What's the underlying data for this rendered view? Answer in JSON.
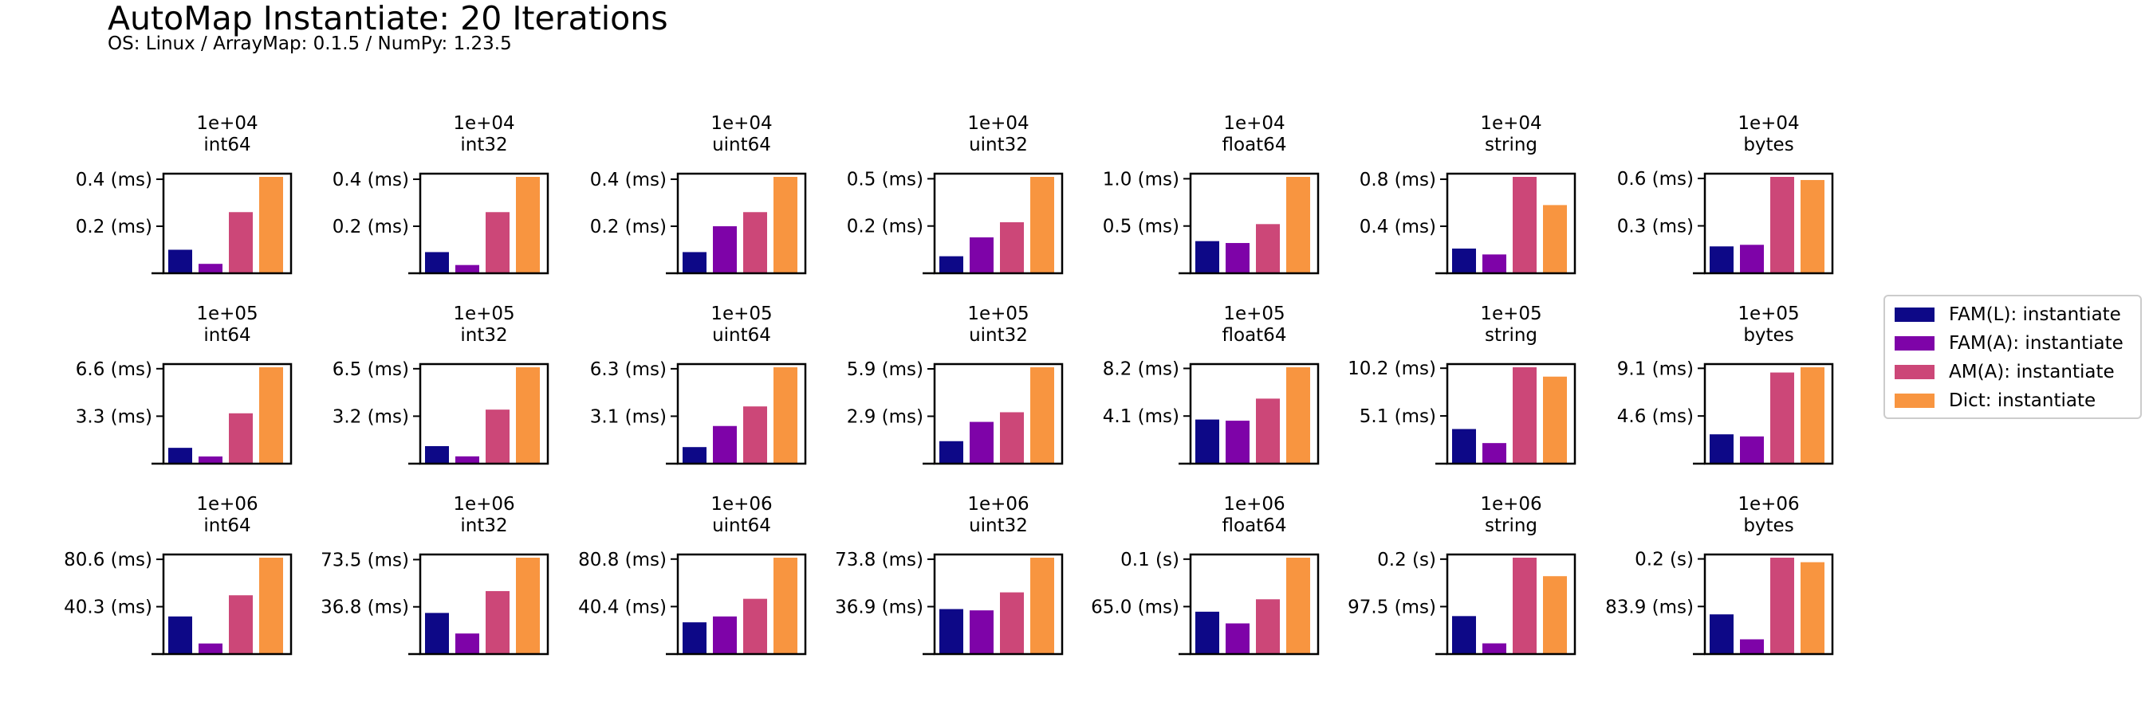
{
  "title": "AutoMap Instantiate: 20 Iterations",
  "subtitle": "OS: Linux / ArrayMap: 0.1.5 / NumPy: 1.23.5",
  "colors": {
    "FAM(L)": "#0d0887",
    "FAM(A)": "#7e03a8",
    "AM(A)": "#cc4778",
    "Dict": "#f89540"
  },
  "legend": [
    {
      "key": "FAM(L)",
      "label": "FAM(L): instantiate"
    },
    {
      "key": "FAM(A)",
      "label": "FAM(A): instantiate"
    },
    {
      "key": "AM(A)",
      "label": "AM(A): instantiate"
    },
    {
      "key": "Dict",
      "label": "Dict: instantiate"
    }
  ],
  "chart_data": {
    "type": "bar",
    "title": "AutoMap Instantiate: 20 Iterations",
    "subtitle": "OS: Linux / ArrayMap: 0.1.5 / NumPy: 1.23.5",
    "series_names": [
      "FAM(L): instantiate",
      "FAM(A): instantiate",
      "AM(A): instantiate",
      "Dict: instantiate"
    ],
    "legend_position": "right",
    "grid": false,
    "rows": [
      {
        "size": "1e+04",
        "panels": [
          {
            "dtype": "int64",
            "ticks": [
              "0.2 (ms)",
              "0.4 (ms)"
            ],
            "tick_values": [
              0.2,
              0.4
            ],
            "ymax": 0.41,
            "values": [
              0.1,
              0.04,
              0.26,
              0.41
            ]
          },
          {
            "dtype": "int32",
            "ticks": [
              "0.2 (ms)",
              "0.4 (ms)"
            ],
            "tick_values": [
              0.2,
              0.4
            ],
            "ymax": 0.41,
            "values": [
              0.09,
              0.035,
              0.26,
              0.41
            ]
          },
          {
            "dtype": "uint64",
            "ticks": [
              "0.2 (ms)",
              "0.4 (ms)"
            ],
            "tick_values": [
              0.2,
              0.4
            ],
            "ymax": 0.41,
            "values": [
              0.09,
              0.2,
              0.26,
              0.41
            ]
          },
          {
            "dtype": "uint32",
            "ticks": [
              "0.2 (ms)",
              "0.5 (ms)"
            ],
            "tick_values": [
              0.25,
              0.5
            ],
            "ymax": 0.51,
            "values": [
              0.09,
              0.19,
              0.27,
              0.51
            ]
          },
          {
            "dtype": "float64",
            "ticks": [
              "0.5 (ms)",
              "1.0 (ms)"
            ],
            "tick_values": [
              0.5,
              1.0
            ],
            "ymax": 1.02,
            "values": [
              0.34,
              0.32,
              0.52,
              1.02
            ]
          },
          {
            "dtype": "string",
            "ticks": [
              "0.4 (ms)",
              "0.8 (ms)"
            ],
            "tick_values": [
              0.4,
              0.8
            ],
            "ymax": 0.82,
            "values": [
              0.21,
              0.16,
              0.82,
              0.58
            ]
          },
          {
            "dtype": "bytes",
            "ticks": [
              "0.3 (ms)",
              "0.6 (ms)"
            ],
            "tick_values": [
              0.3,
              0.6
            ],
            "ymax": 0.61,
            "values": [
              0.17,
              0.18,
              0.61,
              0.59
            ]
          }
        ]
      },
      {
        "size": "1e+05",
        "panels": [
          {
            "dtype": "int64",
            "ticks": [
              "3.3 (ms)",
              "6.6 (ms)"
            ],
            "tick_values": [
              3.3,
              6.6
            ],
            "ymax": 6.7,
            "values": [
              1.1,
              0.5,
              3.5,
              6.7
            ]
          },
          {
            "dtype": "int32",
            "ticks": [
              "3.2 (ms)",
              "6.5 (ms)"
            ],
            "tick_values": [
              3.25,
              6.5
            ],
            "ymax": 6.6,
            "values": [
              1.2,
              0.5,
              3.7,
              6.6
            ]
          },
          {
            "dtype": "uint64",
            "ticks": [
              "3.1 (ms)",
              "6.3 (ms)"
            ],
            "tick_values": [
              3.15,
              6.3
            ],
            "ymax": 6.4,
            "values": [
              1.1,
              2.5,
              3.8,
              6.4
            ]
          },
          {
            "dtype": "uint32",
            "ticks": [
              "2.9 (ms)",
              "5.9 (ms)"
            ],
            "tick_values": [
              2.95,
              5.9
            ],
            "ymax": 6.0,
            "values": [
              1.4,
              2.6,
              3.2,
              6.0
            ]
          },
          {
            "dtype": "float64",
            "ticks": [
              "4.1 (ms)",
              "8.2 (ms)"
            ],
            "tick_values": [
              4.1,
              8.2
            ],
            "ymax": 8.3,
            "values": [
              3.8,
              3.7,
              5.6,
              8.3
            ]
          },
          {
            "dtype": "string",
            "ticks": [
              "5.1 (ms)",
              "10.2 (ms)"
            ],
            "tick_values": [
              5.1,
              10.2
            ],
            "ymax": 10.3,
            "values": [
              3.7,
              2.2,
              10.3,
              9.3
            ]
          },
          {
            "dtype": "bytes",
            "ticks": [
              "4.6 (ms)",
              "9.1 (ms)"
            ],
            "tick_values": [
              4.55,
              9.1
            ],
            "ymax": 9.2,
            "values": [
              2.8,
              2.6,
              8.7,
              9.2
            ]
          }
        ]
      },
      {
        "size": "1e+06",
        "panels": [
          {
            "dtype": "int64",
            "ticks": [
              "40.3 (ms)",
              "80.6 (ms)"
            ],
            "tick_values": [
              40.3,
              80.6
            ],
            "ymax": 82,
            "values": [
              32,
              9,
              50,
              82
            ]
          },
          {
            "dtype": "int32",
            "ticks": [
              "36.8 (ms)",
              "73.5 (ms)"
            ],
            "tick_values": [
              36.75,
              73.5
            ],
            "ymax": 75,
            "values": [
              32,
              16,
              49,
              75
            ]
          },
          {
            "dtype": "uint64",
            "ticks": [
              "40.4 (ms)",
              "80.8 (ms)"
            ],
            "tick_values": [
              40.4,
              80.8
            ],
            "ymax": 82,
            "values": [
              27,
              32,
              47,
              82
            ]
          },
          {
            "dtype": "uint32",
            "ticks": [
              "36.9 (ms)",
              "73.8 (ms)"
            ],
            "tick_values": [
              36.9,
              73.8
            ],
            "ymax": 75,
            "values": [
              35,
              34,
              48,
              75
            ]
          },
          {
            "dtype": "float64",
            "ticks": [
              "65.0 (ms)",
              "0.1 (s)"
            ],
            "tick_values": [
              65.0,
              130.0
            ],
            "ymax": 132,
            "values": [
              58,
              42,
              75,
              132
            ]
          },
          {
            "dtype": "string",
            "ticks": [
              "97.5 (ms)",
              "0.2 (s)"
            ],
            "tick_values": [
              97.5,
              195.0
            ],
            "ymax": 198,
            "values": [
              78,
              22,
              198,
              160
            ]
          },
          {
            "dtype": "bytes",
            "ticks": [
              "83.9 (ms)",
              "0.2 (s)"
            ],
            "tick_values": [
              83.9,
              167.8
            ],
            "ymax": 170,
            "values": [
              70,
              26,
              170,
              162
            ]
          }
        ]
      }
    ]
  }
}
